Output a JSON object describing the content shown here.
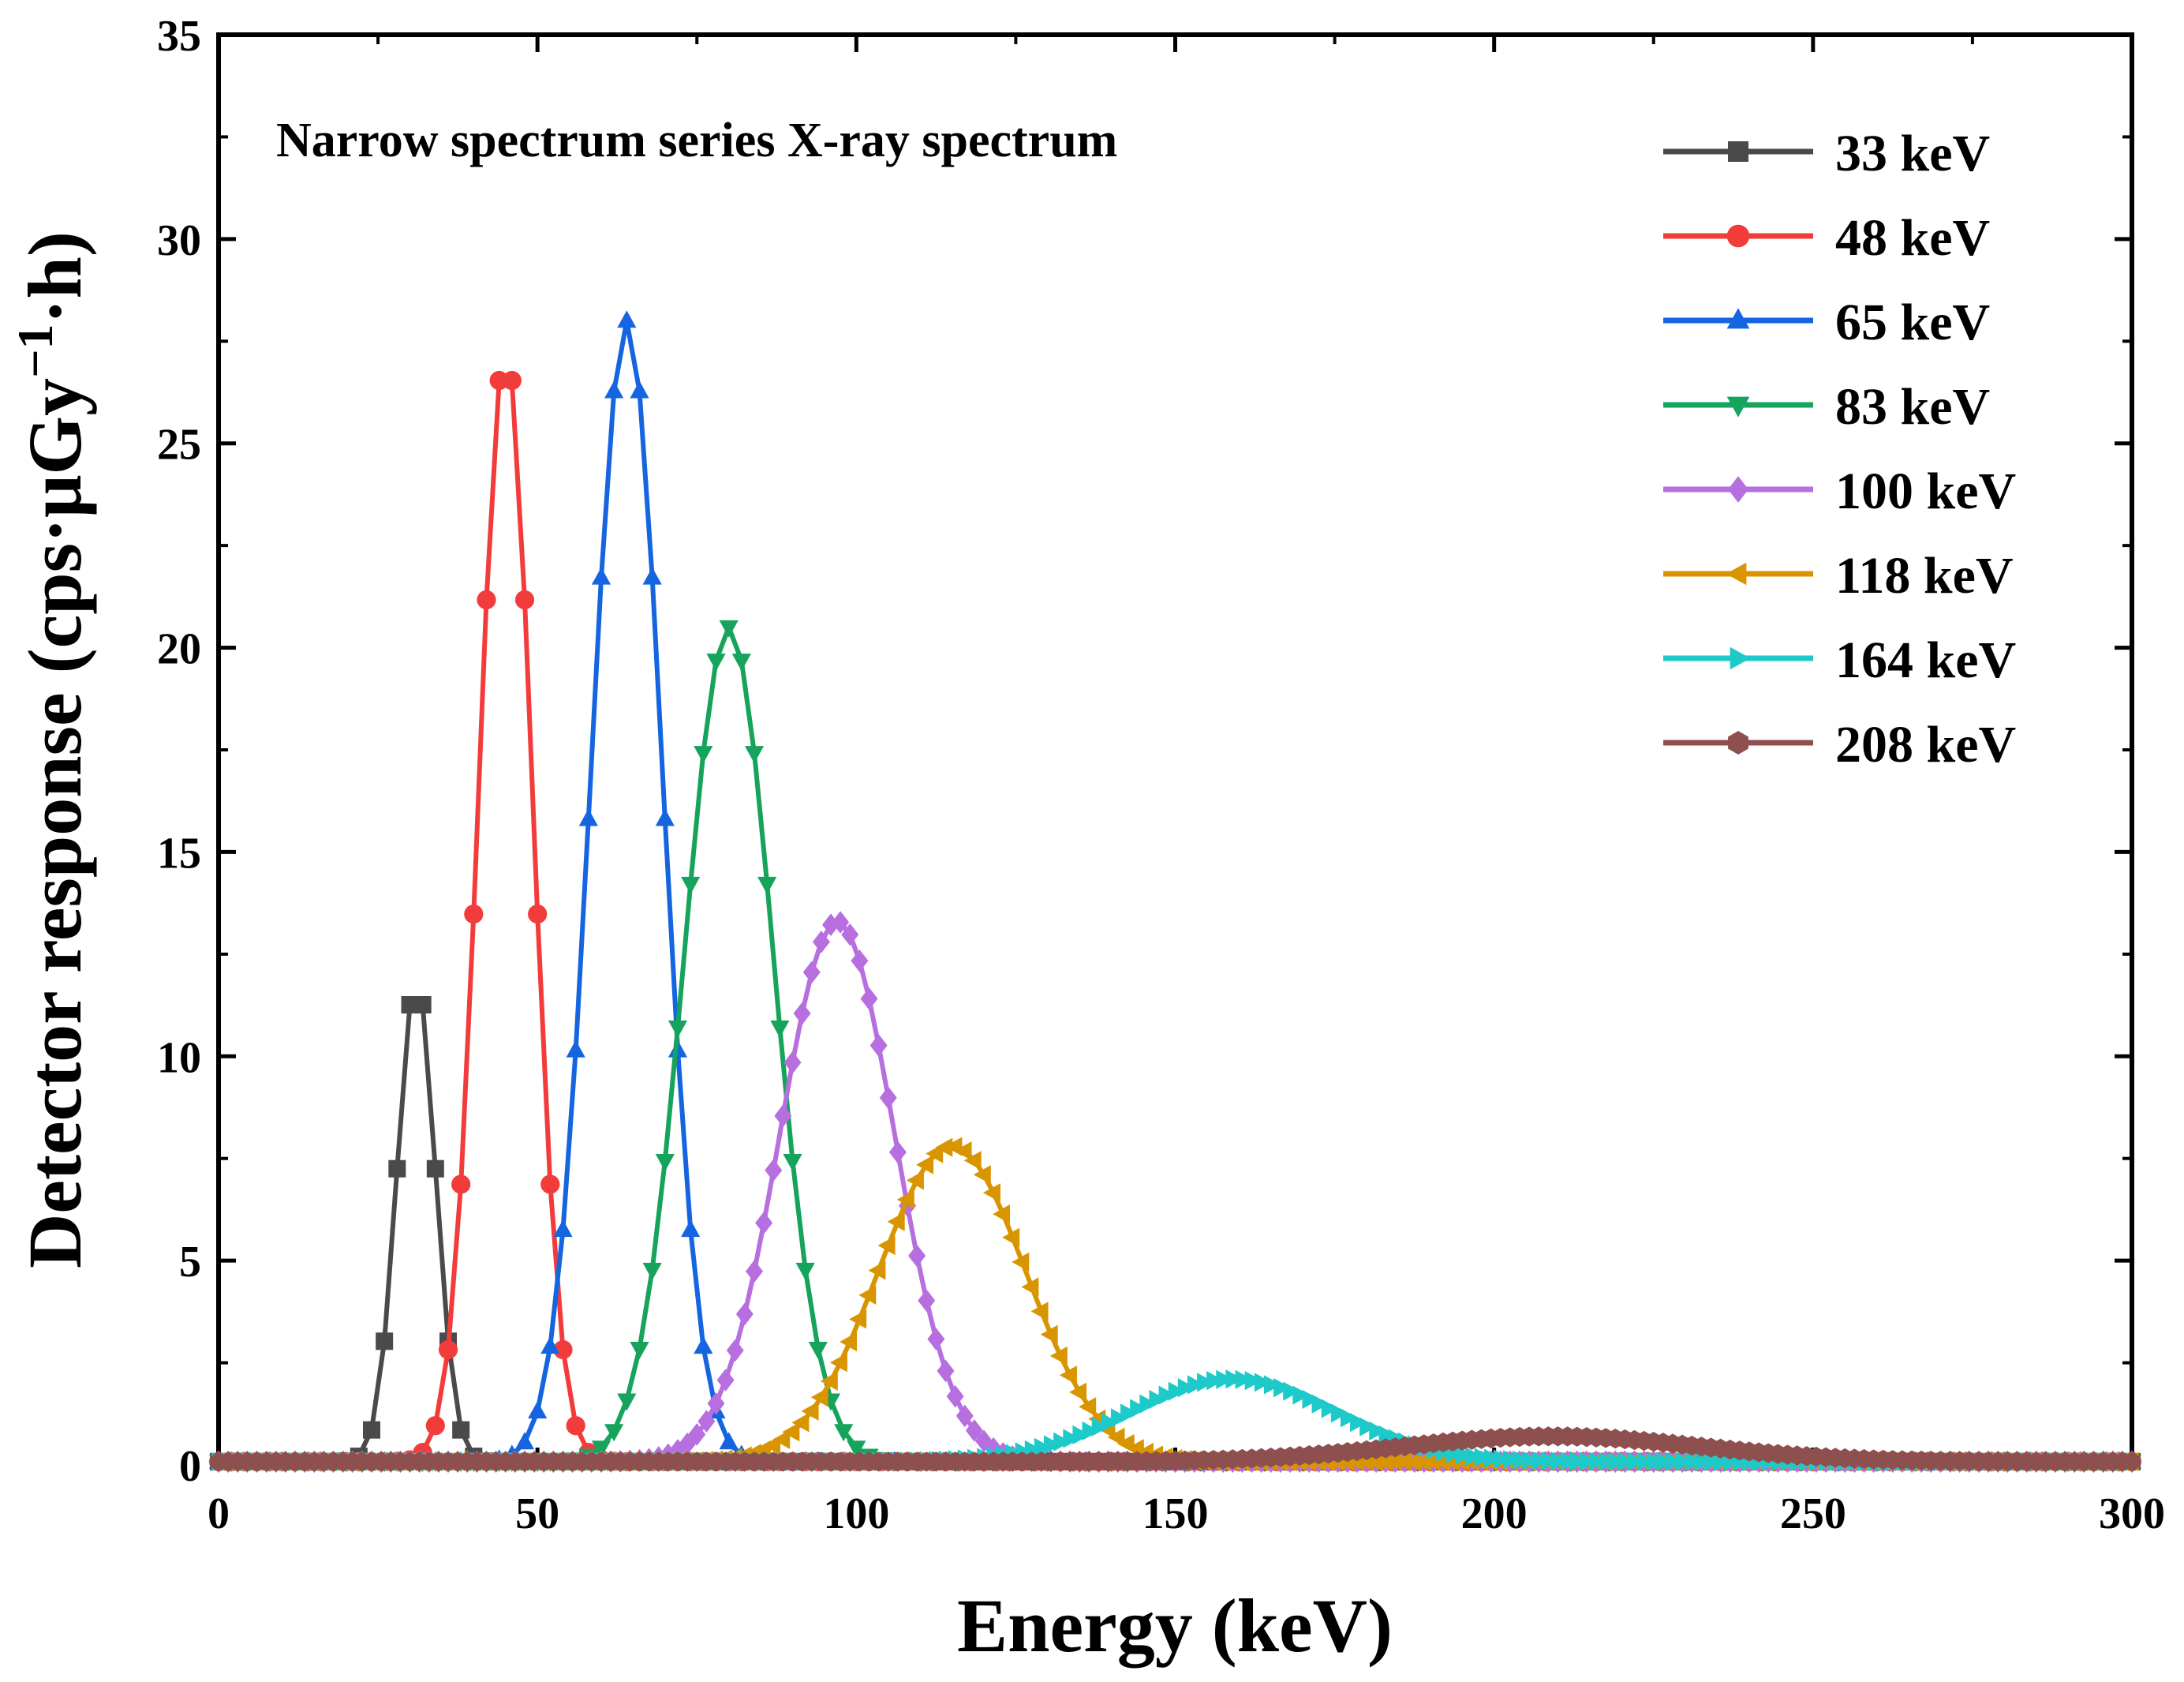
{
  "chart_data": {
    "type": "line",
    "title": "Narrow spectrum series X-ray spectrum",
    "xlabel": "Energy (keV)",
    "ylabel": {
      "main": "Detector response (cps·μGy",
      "sup": "−1",
      "tail": "·h)"
    },
    "xlim": [
      0,
      300
    ],
    "ylim": [
      0,
      35
    ],
    "xticks": [
      "0",
      "50",
      "100",
      "150",
      "200",
      "250",
      "300"
    ],
    "yticks": [
      "0",
      "5",
      "10",
      "15",
      "20",
      "25",
      "30",
      "35"
    ],
    "legend_position": "top-right",
    "series": [
      {
        "name": "33 keV",
        "color": "#4a4a4a",
        "marker": "square",
        "peak_energy": 31,
        "peak_value": 11.9,
        "sigma": 3.0,
        "baseline": 0.08,
        "step": 2
      },
      {
        "name": "48 keV",
        "color": "#f23c3c",
        "marker": "circle",
        "peak_energy": 45,
        "peak_value": 27.3,
        "sigma": 4.2,
        "baseline": 0.08,
        "step": 2
      },
      {
        "name": "65 keV",
        "color": "#1565e0",
        "marker": "triangle-up",
        "peak_energy": 64,
        "peak_value": 28.0,
        "sigma": 5.6,
        "baseline": 0.08,
        "step": 2
      },
      {
        "name": "83 keV",
        "color": "#16a35b",
        "marker": "triangle-down",
        "peak_energy": 80,
        "peak_value": 20.5,
        "sigma": 7.0,
        "baseline": 0.08,
        "step": 2
      },
      {
        "name": "100 keV",
        "color": "#b76fe0",
        "marker": "diamond",
        "peak_energy": 97,
        "peak_value": 13.3,
        "sigma": 9.0,
        "baseline": 0.08,
        "step": 1.5
      },
      {
        "name": "118 keV",
        "color": "#d99500",
        "marker": "triangle-left",
        "peak_energy": 115,
        "peak_value": 7.8,
        "sigma": 11.5,
        "baseline": 0.08,
        "step": 1.5
      },
      {
        "name": "164 keV",
        "color": "#1ec9c9",
        "marker": "triangle-right",
        "peak_energy": 159,
        "peak_value": 2.1,
        "sigma": 16.0,
        "baseline": 0.08,
        "step": 1.5
      },
      {
        "name": "208 keV",
        "color": "#8e4f4f",
        "marker": "hexagon",
        "peak_energy": 209,
        "peak_value": 0.7,
        "sigma": 23.0,
        "baseline": 0.08,
        "step": 1.5
      }
    ]
  }
}
